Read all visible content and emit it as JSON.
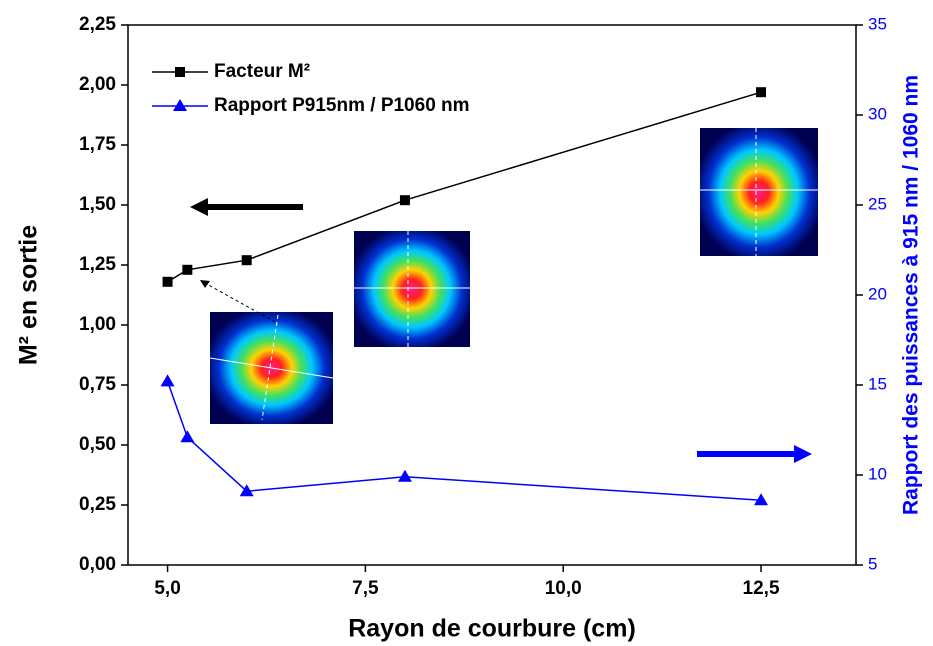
{
  "chart_data": {
    "type": "line",
    "xlabel": "Rayon de courbure (cm)",
    "ylabel": "M² en sortie",
    "y2label": "Rapport des puissances à 915 nm / 1060 nm",
    "x": [
      5,
      5.25,
      6,
      8,
      12.5
    ],
    "series": [
      {
        "name": "Facteur M²",
        "color": "#000000",
        "marker": "square",
        "values": [
          1.18,
          1.23,
          1.27,
          1.52,
          1.97
        ]
      },
      {
        "name": "Rapport P915nm  / P1060 nm",
        "color": "#0000ff",
        "marker": "triangle",
        "axis": "y2",
        "values": [
          15.2,
          12.1,
          9.1,
          9.9,
          8.6
        ]
      }
    ],
    "xlim": [
      4.5,
      13.7
    ],
    "xticks": [
      {
        "value": 5,
        "label": "5,0"
      },
      {
        "value": 7.5,
        "label": "7,5"
      },
      {
        "value": 10,
        "label": "10,0"
      },
      {
        "value": 12.5,
        "label": "12,5"
      }
    ],
    "ylim": [
      0,
      2.25
    ],
    "yticks": [
      {
        "value": 0,
        "label": "0,00"
      },
      {
        "value": 0.25,
        "label": "0,25"
      },
      {
        "value": 0.5,
        "label": "0,50"
      },
      {
        "value": 0.75,
        "label": "0,75"
      },
      {
        "value": 1,
        "label": "1,00"
      },
      {
        "value": 1.25,
        "label": "1,25"
      },
      {
        "value": 1.5,
        "label": "1,50"
      },
      {
        "value": 1.75,
        "label": "1,75"
      },
      {
        "value": 2,
        "label": "2,00"
      },
      {
        "value": 2.25,
        "label": "2,25"
      }
    ],
    "y2lim": [
      5,
      35
    ],
    "y2ticks": [
      5,
      10,
      15,
      20,
      25,
      30,
      35
    ],
    "y2color": "#0000ff",
    "legend": "upper left"
  }
}
